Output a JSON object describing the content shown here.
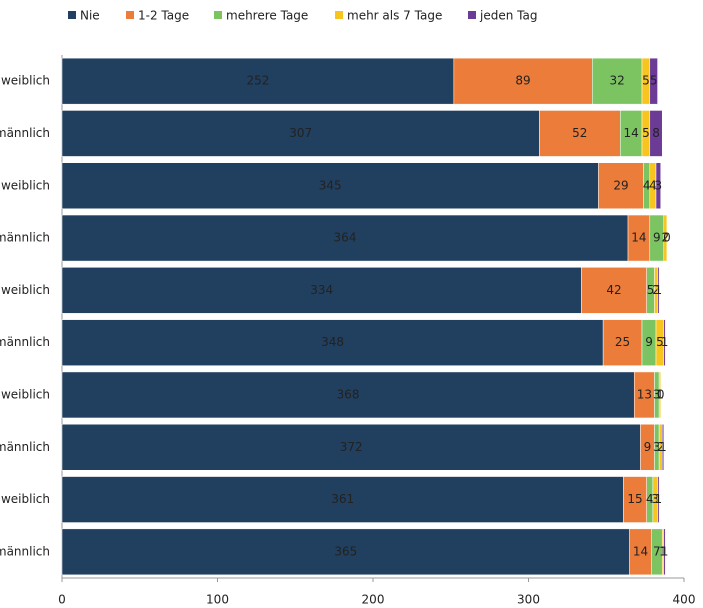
{
  "chart_data": {
    "type": "stacked-bar-horizontal",
    "categories": [
      "weiblich",
      "männlich",
      "weiblich",
      "männlich",
      "weiblich",
      "männlich",
      "weiblich",
      "männlich",
      "weiblich",
      "männlich"
    ],
    "series": [
      {
        "name": "Nie",
        "color": "#213f5e",
        "values": [
          252,
          307,
          345,
          364,
          334,
          348,
          368,
          372,
          361,
          365
        ]
      },
      {
        "name": "1-2 Tage",
        "color": "#ec7c3a",
        "values": [
          89,
          52,
          29,
          14,
          42,
          25,
          13,
          9,
          15,
          14
        ]
      },
      {
        "name": "mehrere Tage",
        "color": "#7cc462",
        "values": [
          32,
          14,
          4,
          9,
          5,
          9,
          3,
          3,
          4,
          7
        ]
      },
      {
        "name": "mehr als 7 Tage",
        "color": "#f7c51e",
        "values": [
          5,
          5,
          4,
          2,
          2,
          5,
          1,
          2,
          3,
          1
        ]
      },
      {
        "name": "jeden Tag",
        "color": "#6b3b96",
        "values": [
          5,
          8,
          3,
          0,
          1,
          1,
          0,
          1,
          1,
          1
        ]
      }
    ],
    "xlim": [
      0,
      400
    ],
    "xticks": [
      0,
      100,
      200,
      300,
      400
    ],
    "legend": "top"
  }
}
